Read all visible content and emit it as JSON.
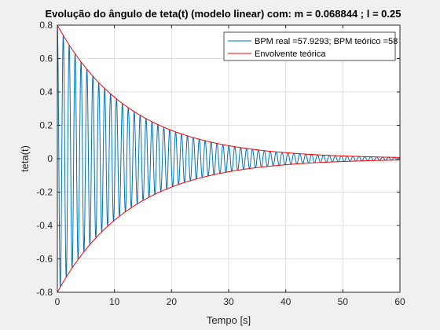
{
  "chart_data": {
    "type": "line",
    "title": "Evolução do ângulo de teta(t) (modelo linear) com: m = 0.068844 ; l = 0.25",
    "xlabel": "Tempo [s]",
    "ylabel": "teta(t)",
    "xlim": [
      0,
      60
    ],
    "ylim": [
      -0.8,
      0.8
    ],
    "xticks": [
      "0",
      "10",
      "20",
      "30",
      "40",
      "50",
      "60"
    ],
    "yticks": [
      "-0.8",
      "-0.6",
      "-0.4",
      "-0.2",
      "0",
      "0.2",
      "0.4",
      "0.6",
      "0.8"
    ],
    "grid": true,
    "legend_position": "top-right",
    "series": [
      {
        "name": "BPM real =57.9293; BPM teórico =58",
        "color": "#0072BD",
        "kind": "damped-cosine",
        "amplitude": 0.8,
        "decay_per_s": 0.0775,
        "bpm": 57.9293
      },
      {
        "name": "Envolvente teórica",
        "color": "#FF0000",
        "kind": "envelope",
        "amplitude": 0.8,
        "decay_per_s": 0.0775
      }
    ]
  }
}
